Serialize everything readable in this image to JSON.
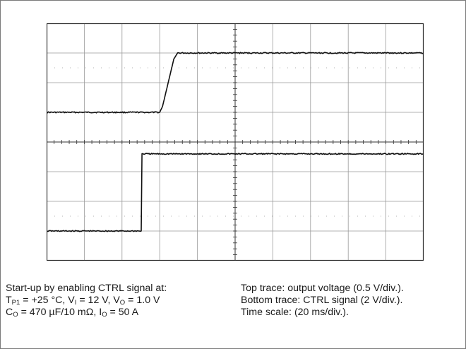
{
  "chart_data": {
    "type": "line",
    "title": "",
    "grid": true,
    "x_unit": "ms",
    "x_scale_ms_per_div": 20,
    "xlim": [
      0,
      200
    ],
    "divisions": {
      "x": 10,
      "y": 8
    },
    "series": [
      {
        "name": "Top trace: output voltage",
        "scale_per_div": 0.5,
        "unit": "V",
        "points": [
          [
            0,
            0.0
          ],
          [
            60.0,
            0.0
          ],
          [
            61.5,
            0.1
          ],
          [
            67.5,
            0.9
          ],
          [
            69.5,
            1.0
          ],
          [
            200,
            1.0
          ]
        ]
      },
      {
        "name": "Bottom trace: CTRL signal",
        "scale_per_div": 2,
        "unit": "V",
        "points": [
          [
            0,
            0.0
          ],
          [
            50.2,
            0.0
          ],
          [
            50.6,
            5.2
          ],
          [
            53.0,
            5.2
          ],
          [
            200,
            5.2
          ]
        ]
      }
    ]
  },
  "caption": {
    "left": {
      "line1": "Start-up by enabling CTRL signal at:",
      "tp_sub": "P1",
      "tp_value": " = +25 °C, V",
      "vi_sub": "I",
      "vi_value": " = 12 V, V",
      "vo_sub": "O",
      "vo_value": " = 1.0 V",
      "co_sub": "O",
      "co_value": " = 470 µF/10 mΩ, I",
      "io_sub": "O",
      "io_value": " = 50 A"
    },
    "right": {
      "line1": "Top trace: output voltage (0.5 V/div.).",
      "line2": "Bottom trace:  CTRL signal (2 V/div.).",
      "line3": "Time scale: (20 ms/div.)."
    }
  }
}
